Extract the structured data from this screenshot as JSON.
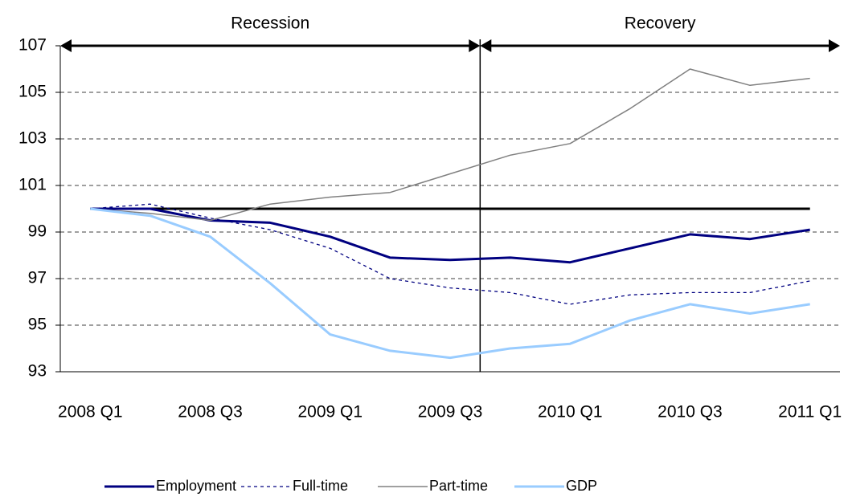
{
  "chart_data": {
    "type": "line",
    "categories": [
      "2008 Q1",
      null,
      "2008 Q3",
      null,
      "2009 Q1",
      null,
      "2009 Q3",
      null,
      "2010 Q1",
      null,
      "2010 Q3",
      null,
      "2011 Q1"
    ],
    "series": [
      {
        "name": "Employment",
        "color": "#000080",
        "style": "solid",
        "width": 3,
        "values": [
          100,
          100.0,
          99.5,
          99.4,
          98.8,
          97.9,
          97.8,
          97.9,
          97.7,
          98.3,
          98.9,
          98.7,
          99.1
        ]
      },
      {
        "name": "Full-time",
        "color": "#000080",
        "style": "dashed",
        "width": 1.3,
        "values": [
          100,
          100.2,
          99.6,
          99.1,
          98.3,
          97.0,
          96.6,
          96.4,
          95.9,
          96.3,
          96.4,
          96.4,
          96.9
        ]
      },
      {
        "name": "Part-time",
        "color": "#808080",
        "style": "solid",
        "width": 1.5,
        "values": [
          100,
          99.8,
          99.5,
          100.2,
          100.5,
          100.7,
          101.5,
          102.3,
          102.8,
          104.3,
          106.0,
          105.3,
          105.6
        ]
      },
      {
        "name": "GDP",
        "color": "#99ccff",
        "style": "solid",
        "width": 3,
        "values": [
          100,
          99.7,
          98.8,
          96.8,
          94.6,
          93.9,
          93.6,
          94.0,
          94.2,
          95.2,
          95.9,
          95.5,
          95.9
        ]
      }
    ],
    "reference_line": 100,
    "annotations": [
      "Recession",
      "Recovery"
    ],
    "ylim": [
      93,
      107
    ],
    "yticks": [
      93,
      95,
      97,
      99,
      101,
      103,
      105,
      107
    ],
    "grid": true,
    "legend": "bottom"
  }
}
